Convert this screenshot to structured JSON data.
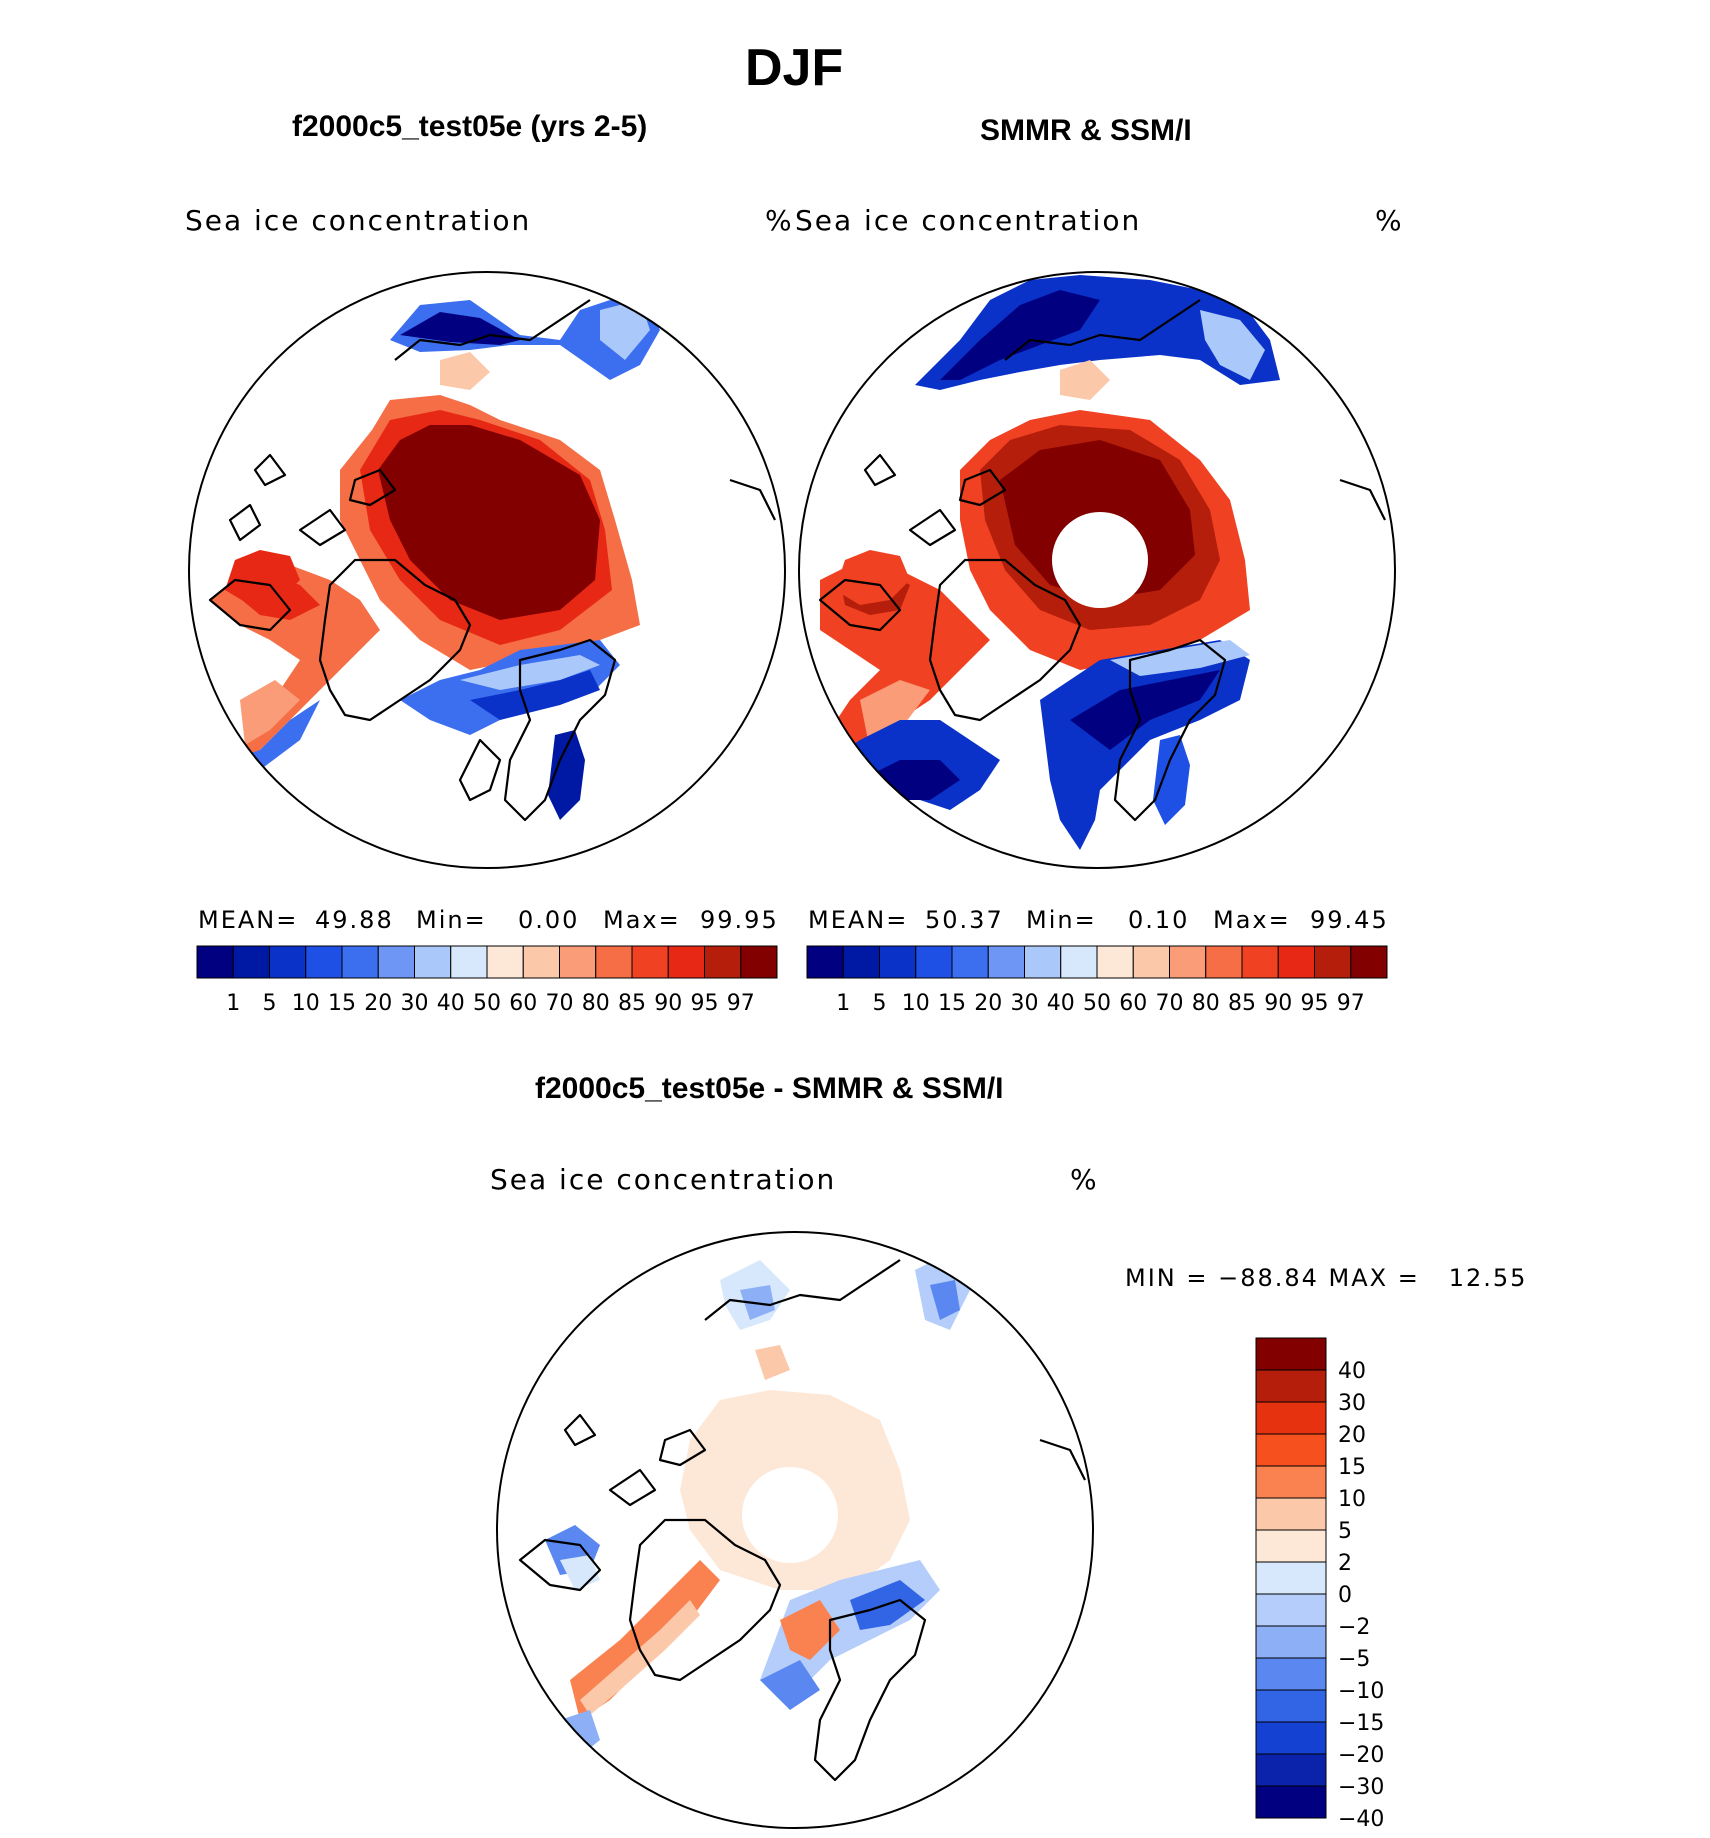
{
  "season": "DJF",
  "panels": {
    "model": {
      "title": "f2000c5_test05e (yrs 2-5)",
      "variable": "Sea ice concentration",
      "units": "%",
      "stats": {
        "mean_label": "MEAN=",
        "mean": "49.88",
        "min_label": "Min=",
        "min": "0.00",
        "max_label": "Max=",
        "max": "99.95"
      }
    },
    "obs": {
      "title": "SMMR & SSM/I",
      "variable": "Sea ice concentration",
      "units": "%",
      "stats": {
        "mean_label": "MEAN=",
        "mean": "50.37",
        "min_label": "Min=",
        "min": "0.10",
        "max_label": "Max=",
        "max": "99.45"
      }
    },
    "diff": {
      "title": "f2000c5_test05e - SMMR & SSM/I",
      "variable": "Sea ice concentration",
      "units": "%",
      "minmax_text": "MIN = −88.84 MAX =   12.55"
    }
  },
  "colorbars": {
    "concentration": {
      "labels": [
        "1",
        "5",
        "10",
        "15",
        "20",
        "30",
        "40",
        "50",
        "60",
        "70",
        "80",
        "85",
        "90",
        "95",
        "97"
      ],
      "colors": [
        "#000080",
        "#0019a5",
        "#0a32c8",
        "#1e50e6",
        "#3c6ef0",
        "#6e96f5",
        "#aac8fa",
        "#d7e8fc",
        "#fde8d8",
        "#fcc8aa",
        "#fa9c78",
        "#f56e46",
        "#f04123",
        "#e62814",
        "#b41e0a",
        "#820000"
      ]
    },
    "difference": {
      "labels": [
        "40",
        "30",
        "20",
        "15",
        "10",
        "5",
        "2",
        "0",
        "−2",
        "−5",
        "−10",
        "−15",
        "−20",
        "−30",
        "−40"
      ],
      "colors": [
        "#820000",
        "#b41e0a",
        "#e6320f",
        "#f5501e",
        "#fa8250",
        "#fcc8aa",
        "#fde8d8",
        "#d7e8fc",
        "#b4cdfa",
        "#8caff5",
        "#5a87f0",
        "#3264e6",
        "#1441d2",
        "#0a23aa",
        "#000080"
      ]
    }
  }
}
